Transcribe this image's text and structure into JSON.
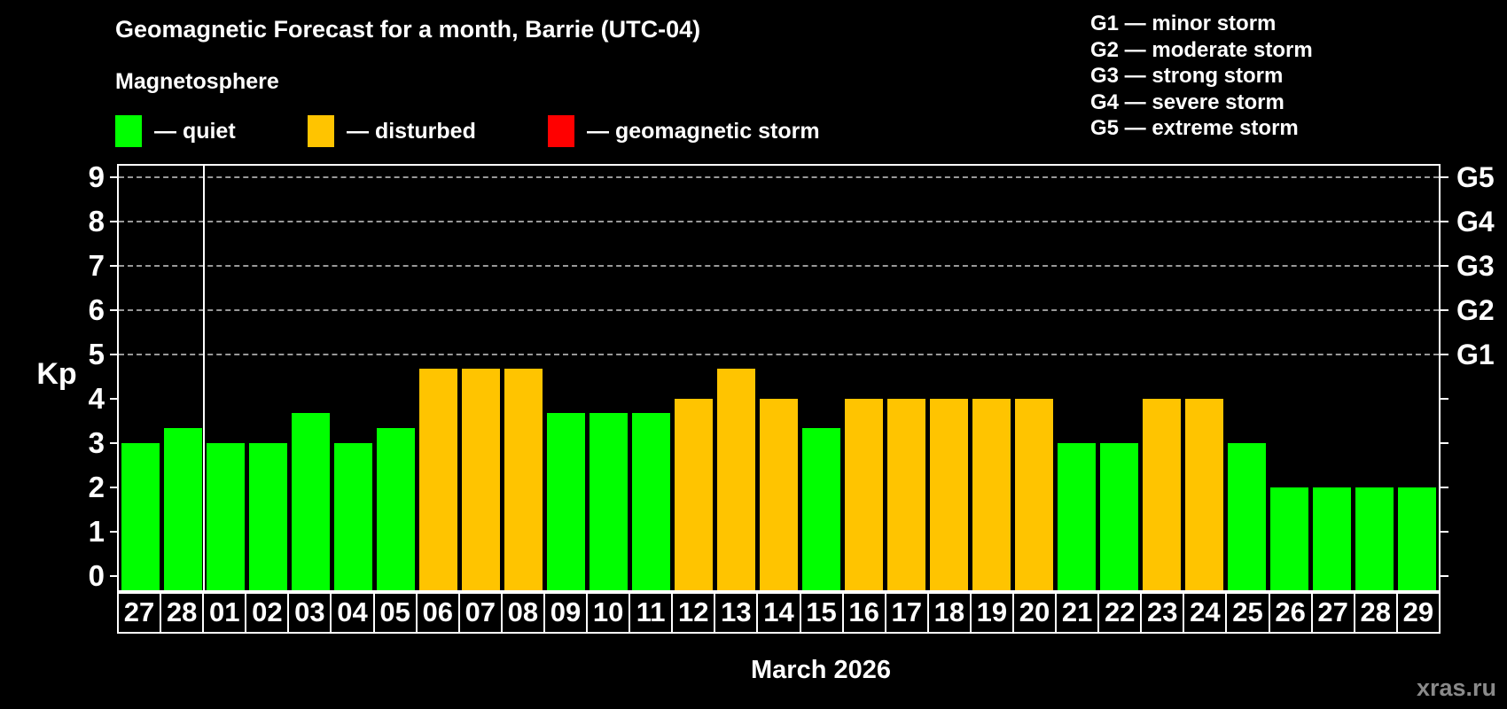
{
  "header": {
    "title": "Geomagnetic Forecast for a month, Barrie (UTC-04)",
    "subtitle": "Magnetosphere"
  },
  "status_legend": {
    "items": [
      {
        "key": "quiet",
        "color": "#00ff00",
        "label": "— quiet"
      },
      {
        "key": "disturbed",
        "color": "#ffc400",
        "label": "— disturbed"
      },
      {
        "key": "storm",
        "color": "#ff0000",
        "label": "— geomagnetic storm"
      }
    ]
  },
  "g_legend": {
    "items": [
      "G1 — minor storm",
      "G2 — moderate storm",
      "G3 — strong storm",
      "G4 — severe storm",
      "G5 — extreme storm"
    ]
  },
  "chart_data": {
    "type": "bar",
    "title": "Geomagnetic Forecast for a month, Barrie (UTC-04)",
    "series_name": "Kp forecast",
    "categories": [
      "27",
      "28",
      "01",
      "02",
      "03",
      "04",
      "05",
      "06",
      "07",
      "08",
      "09",
      "10",
      "11",
      "12",
      "13",
      "14",
      "15",
      "16",
      "17",
      "18",
      "19",
      "20",
      "21",
      "22",
      "23",
      "24",
      "25",
      "26",
      "27",
      "28",
      "29"
    ],
    "values": [
      3.0,
      3.33,
      3.0,
      3.0,
      3.67,
      3.0,
      3.33,
      4.67,
      4.67,
      4.67,
      3.67,
      3.67,
      3.67,
      4.0,
      4.67,
      4.0,
      3.33,
      4.0,
      4.0,
      4.0,
      4.0,
      4.0,
      3.0,
      3.0,
      4.0,
      4.0,
      3.0,
      2.0,
      2.0,
      2.0,
      2.0
    ],
    "ylabel": "Kp",
    "xlabel": "March 2026",
    "ylim": [
      0,
      9
    ],
    "y_ticks": [
      0,
      1,
      2,
      3,
      4,
      5,
      6,
      7,
      8,
      9
    ],
    "gridlines": [
      5,
      6,
      7,
      8,
      9
    ],
    "grid_style": "dashed",
    "right_axis_labels": [
      {
        "kp": 5,
        "label": "G1"
      },
      {
        "kp": 6,
        "label": "G2"
      },
      {
        "kp": 7,
        "label": "G3"
      },
      {
        "kp": 8,
        "label": "G4"
      },
      {
        "kp": 9,
        "label": "G5"
      }
    ],
    "color_thresholds": {
      "disturbed_min": 4,
      "storm_min": 5
    },
    "month_separator_after_index": 1,
    "legend_position": "top-left"
  },
  "footer": {
    "month_label": "March 2026",
    "watermark": "xras.ru"
  }
}
